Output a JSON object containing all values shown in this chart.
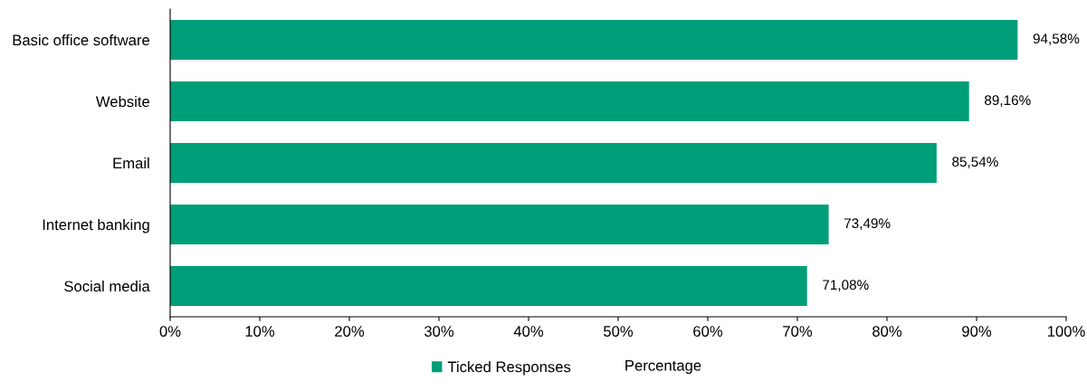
{
  "chart_data": {
    "type": "bar",
    "orientation": "horizontal",
    "categories": [
      "Basic office software",
      "Website",
      "Email",
      "Internet banking",
      "Social media"
    ],
    "series": [
      {
        "name": "Ticked Responses",
        "color": "#009e78",
        "values": [
          94.58,
          89.16,
          85.54,
          73.49,
          71.08
        ],
        "value_labels": [
          "94,58%",
          "89,16%",
          "85,54%",
          "73,49%",
          "71,08%"
        ]
      }
    ],
    "xlim": [
      0,
      100
    ],
    "xticks": [
      {
        "value": 0,
        "label": "0%"
      },
      {
        "value": 10,
        "label": "10%"
      },
      {
        "value": 20,
        "label": "20%"
      },
      {
        "value": 30,
        "label": "30%"
      },
      {
        "value": 40,
        "label": "40%"
      },
      {
        "value": 50,
        "label": "50%"
      },
      {
        "value": 60,
        "label": "60%"
      },
      {
        "value": 70,
        "label": "70%"
      },
      {
        "value": 80,
        "label": "80%"
      },
      {
        "value": 90,
        "label": "90%"
      },
      {
        "value": 100,
        "label": "100%"
      }
    ],
    "xlabel": "Percentage",
    "legend": "bottom",
    "grid": false
  }
}
